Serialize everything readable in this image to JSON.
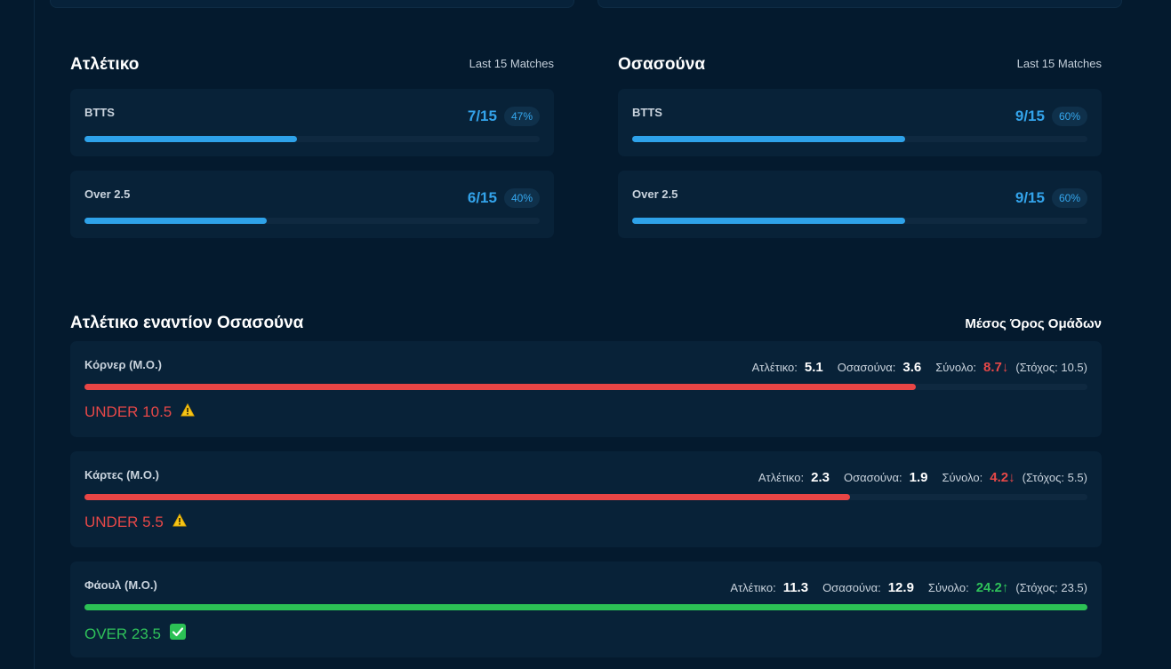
{
  "teams": [
    {
      "name": "Ατλέτικο",
      "subtitle": "Last 15 Matches",
      "stats": [
        {
          "label": "BTTS",
          "fraction": "7/15",
          "percent": "47%",
          "ratio": 0.4667
        },
        {
          "label": "Over 2.5",
          "fraction": "6/15",
          "percent": "40%",
          "ratio": 0.4
        }
      ]
    },
    {
      "name": "Οσασούνα",
      "subtitle": "Last 15 Matches",
      "stats": [
        {
          "label": "BTTS",
          "fraction": "9/15",
          "percent": "60%",
          "ratio": 0.6
        },
        {
          "label": "Over 2.5",
          "fraction": "9/15",
          "percent": "60%",
          "ratio": 0.6
        }
      ]
    }
  ],
  "comparison": {
    "title": "Ατλέτικο εναντίον Οσασούνα",
    "subtitle": "Μέσος Όρος Ομάδων",
    "metrics": [
      {
        "label": "Κόρνερ (Μ.Ο.)",
        "home_label": "Ατλέτικο:",
        "home_value": "5.1",
        "away_label": "Οσασούνα:",
        "away_value": "3.6",
        "total_label": "Σύνολο:",
        "total_value": "8.7↓",
        "target": "(Στόχος: 10.5)",
        "ratio": 0.8286,
        "status": "red",
        "verdict": "UNDER 10.5",
        "icon": "warning-icon"
      },
      {
        "label": "Κάρτες (Μ.Ο.)",
        "home_label": "Ατλέτικο:",
        "home_value": "2.3",
        "away_label": "Οσασούνα:",
        "away_value": "1.9",
        "total_label": "Σύνολο:",
        "total_value": "4.2↓",
        "target": "(Στόχος: 5.5)",
        "ratio": 0.7636,
        "status": "red",
        "verdict": "UNDER 5.5",
        "icon": "warning-icon"
      },
      {
        "label": "Φάουλ (Μ.Ο.)",
        "home_label": "Ατλέτικο:",
        "home_value": "11.3",
        "away_label": "Οσασούνα:",
        "away_value": "12.9",
        "total_label": "Σύνολο:",
        "total_value": "24.2↑",
        "target": "(Στόχος: 23.5)",
        "ratio": 1.0,
        "status": "green",
        "verdict": "OVER 23.5",
        "icon": "check-icon"
      }
    ]
  },
  "colors": {
    "background": "#041a2e",
    "card": "#082238",
    "accent_blue": "#2ea2e9",
    "under_red": "#e84545",
    "over_green": "#2cc155",
    "warning_yellow": "#f5c518"
  }
}
